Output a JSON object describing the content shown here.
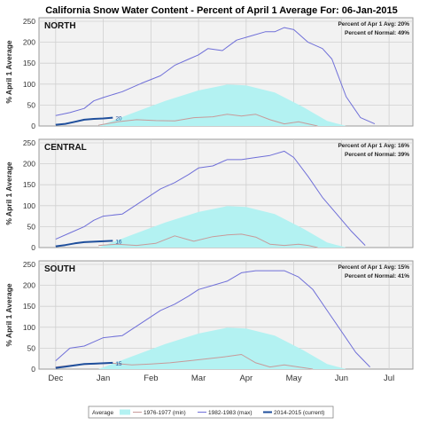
{
  "title": "California Snow Water Content - Percent of April 1 Average For: 06-Jan-2015",
  "y_label": "% April 1 Average",
  "x_ticks": [
    "Dec",
    "Jan",
    "Feb",
    "Mar",
    "Apr",
    "May",
    "Jun",
    "Jul"
  ],
  "y_ticks": [
    "0",
    "50",
    "100",
    "150",
    "200",
    "250"
  ],
  "legend": {
    "average": "Average",
    "min": "1976-1977 (min)",
    "max": "1982-1983 (max)",
    "current": "2014-2015 (current)"
  },
  "colors": {
    "average_fill": "#b3f2f2",
    "min_line": "#c79a9a",
    "max_line": "#6f6fd8",
    "current_line": "#1f4f9c",
    "panel_bg": "#f2f2f2",
    "grid": "#d0d0d0"
  },
  "chart_data": [
    {
      "type": "area",
      "name": "NORTH",
      "ylim": [
        0,
        250
      ],
      "stats": [
        "Percent of Apr 1 Avg: 20%",
        "Percent of Normal: 49%"
      ],
      "current_label": "20",
      "x_unit": "month index (0 = Dec 1)",
      "series": [
        {
          "name": "Average",
          "x": [
            0.9,
            1.6,
            2.3,
            3.0,
            3.6,
            4.0,
            4.6,
            5.2,
            5.7,
            6.1
          ],
          "values": [
            0,
            30,
            60,
            85,
            99,
            97,
            80,
            45,
            12,
            0
          ]
        },
        {
          "name": "1976-1977 (min)",
          "x": [
            0.9,
            1.3,
            1.7,
            2.1,
            2.5,
            2.9,
            3.3,
            3.6,
            3.9,
            4.2,
            4.5,
            4.8,
            5.1,
            5.3,
            5.5
          ],
          "values": [
            2,
            10,
            15,
            13,
            12,
            20,
            22,
            28,
            24,
            28,
            15,
            5,
            10,
            5,
            0
          ]
        },
        {
          "name": "1982-1983 (max)",
          "x": [
            0,
            0.3,
            0.6,
            0.8,
            1.0,
            1.4,
            1.8,
            2.2,
            2.5,
            2.8,
            3.0,
            3.2,
            3.5,
            3.8,
            4.1,
            4.4,
            4.6,
            4.8,
            5.0,
            5.3,
            5.6,
            5.8,
            6.1,
            6.4,
            6.7
          ],
          "values": [
            25,
            32,
            42,
            60,
            68,
            82,
            102,
            120,
            145,
            160,
            170,
            185,
            180,
            205,
            215,
            225,
            225,
            235,
            230,
            200,
            185,
            160,
            70,
            20,
            5
          ]
        },
        {
          "name": "2014-2015 (current)",
          "x": [
            0,
            0.2,
            0.4,
            0.6,
            0.8,
            1.0,
            1.2
          ],
          "values": [
            3,
            5,
            10,
            15,
            17,
            18,
            20
          ]
        }
      ]
    },
    {
      "type": "area",
      "name": "CENTRAL",
      "ylim": [
        0,
        250
      ],
      "stats": [
        "Percent of Apr 1 Avg: 16%",
        "Percent of Normal: 39%"
      ],
      "current_label": "16",
      "x_unit": "month index (0 = Dec 1)",
      "series": [
        {
          "name": "Average",
          "x": [
            0.9,
            1.6,
            2.3,
            3.0,
            3.6,
            4.0,
            4.6,
            5.2,
            5.7,
            6.1
          ],
          "values": [
            0,
            30,
            60,
            85,
            99,
            97,
            80,
            45,
            12,
            0
          ]
        },
        {
          "name": "1976-1977 (min)",
          "x": [
            0.9,
            1.3,
            1.7,
            2.1,
            2.5,
            2.9,
            3.3,
            3.6,
            3.9,
            4.2,
            4.5,
            4.8,
            5.1,
            5.3,
            5.5
          ],
          "values": [
            5,
            8,
            5,
            10,
            28,
            15,
            26,
            30,
            32,
            25,
            8,
            5,
            8,
            5,
            0
          ]
        },
        {
          "name": "1982-1983 (max)",
          "x": [
            0,
            0.3,
            0.6,
            0.8,
            1.0,
            1.4,
            1.8,
            2.2,
            2.5,
            2.8,
            3.0,
            3.3,
            3.6,
            3.9,
            4.2,
            4.5,
            4.8,
            5.0,
            5.3,
            5.6,
            5.9,
            6.2,
            6.5
          ],
          "values": [
            20,
            35,
            50,
            65,
            75,
            80,
            110,
            140,
            155,
            175,
            190,
            195,
            210,
            210,
            215,
            220,
            230,
            215,
            170,
            120,
            80,
            40,
            5
          ]
        },
        {
          "name": "2014-2015 (current)",
          "x": [
            0,
            0.2,
            0.4,
            0.6,
            0.8,
            1.0,
            1.2
          ],
          "values": [
            3,
            6,
            10,
            13,
            14,
            15,
            16
          ]
        }
      ]
    },
    {
      "type": "area",
      "name": "SOUTH",
      "ylim": [
        0,
        250
      ],
      "stats": [
        "Percent of Apr 1 Avg: 15%",
        "Percent of Normal: 41%"
      ],
      "current_label": "15",
      "x_unit": "month index (0 = Dec 1)",
      "series": [
        {
          "name": "Average",
          "x": [
            0.9,
            1.6,
            2.3,
            3.0,
            3.6,
            4.0,
            4.6,
            5.2,
            5.7,
            6.1
          ],
          "values": [
            0,
            30,
            60,
            85,
            99,
            97,
            80,
            45,
            12,
            0
          ]
        },
        {
          "name": "1976-1977 (min)",
          "x": [
            0,
            0.4,
            0.8,
            1.2,
            1.6,
            2.0,
            2.4,
            2.8,
            3.2,
            3.6,
            3.9,
            4.2,
            4.5,
            4.8,
            5.1,
            5.4
          ],
          "values": [
            5,
            10,
            12,
            14,
            10,
            12,
            15,
            20,
            25,
            30,
            35,
            15,
            5,
            10,
            5,
            0
          ]
        },
        {
          "name": "1982-1983 (max)",
          "x": [
            0,
            0.3,
            0.6,
            0.8,
            1.0,
            1.4,
            1.8,
            2.2,
            2.5,
            2.8,
            3.0,
            3.3,
            3.6,
            3.9,
            4.2,
            4.5,
            4.8,
            5.1,
            5.4,
            5.7,
            6.0,
            6.3,
            6.6
          ],
          "values": [
            20,
            50,
            55,
            65,
            75,
            80,
            110,
            140,
            155,
            175,
            190,
            200,
            210,
            230,
            235,
            235,
            235,
            220,
            190,
            140,
            90,
            40,
            5
          ]
        },
        {
          "name": "2014-2015 (current)",
          "x": [
            0,
            0.2,
            0.4,
            0.6,
            0.8,
            1.0,
            1.2
          ],
          "values": [
            3,
            6,
            9,
            12,
            13,
            14,
            15
          ]
        }
      ]
    }
  ]
}
